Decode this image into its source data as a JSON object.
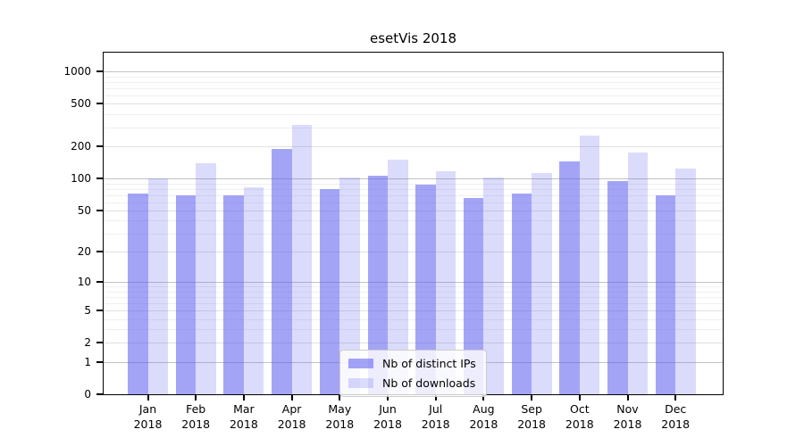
{
  "chart_data": {
    "type": "bar",
    "title": "esetVis 2018",
    "categories": [
      "Jan",
      "Feb",
      "Mar",
      "Apr",
      "May",
      "Jun",
      "Jul",
      "Aug",
      "Sep",
      "Oct",
      "Nov",
      "Dec"
    ],
    "year_label": "2018",
    "series": [
      {
        "name": "Nb of distinct IPs",
        "color": "rgba(90,90,240,0.55)",
        "values": [
          72,
          70,
          70,
          190,
          79,
          106,
          88,
          66,
          72,
          146,
          95,
          70
        ]
      },
      {
        "name": "Nb of downloads",
        "color": "rgba(90,90,240,0.22)",
        "values": [
          100,
          140,
          82,
          315,
          102,
          150,
          117,
          102,
          113,
          250,
          177,
          124
        ]
      }
    ],
    "xlabel": "",
    "ylabel": "",
    "y_axis": {
      "scale": "log1p",
      "ticks": [
        0,
        1,
        2,
        5,
        10,
        20,
        50,
        100,
        200,
        500,
        1000
      ],
      "minor_ticks": [
        3,
        4,
        6,
        7,
        8,
        9,
        30,
        40,
        60,
        70,
        80,
        90,
        300,
        400,
        600,
        700,
        800,
        900
      ],
      "ylim": [
        0,
        1490
      ]
    },
    "grid": "on",
    "legend_position": "lower center"
  },
  "colors": {
    "major_grid": "#c3c3c3",
    "mid_grid": "#e0e0e0",
    "minor_grid": "#efefef",
    "spine": "#000000",
    "background": "#ffffff"
  }
}
